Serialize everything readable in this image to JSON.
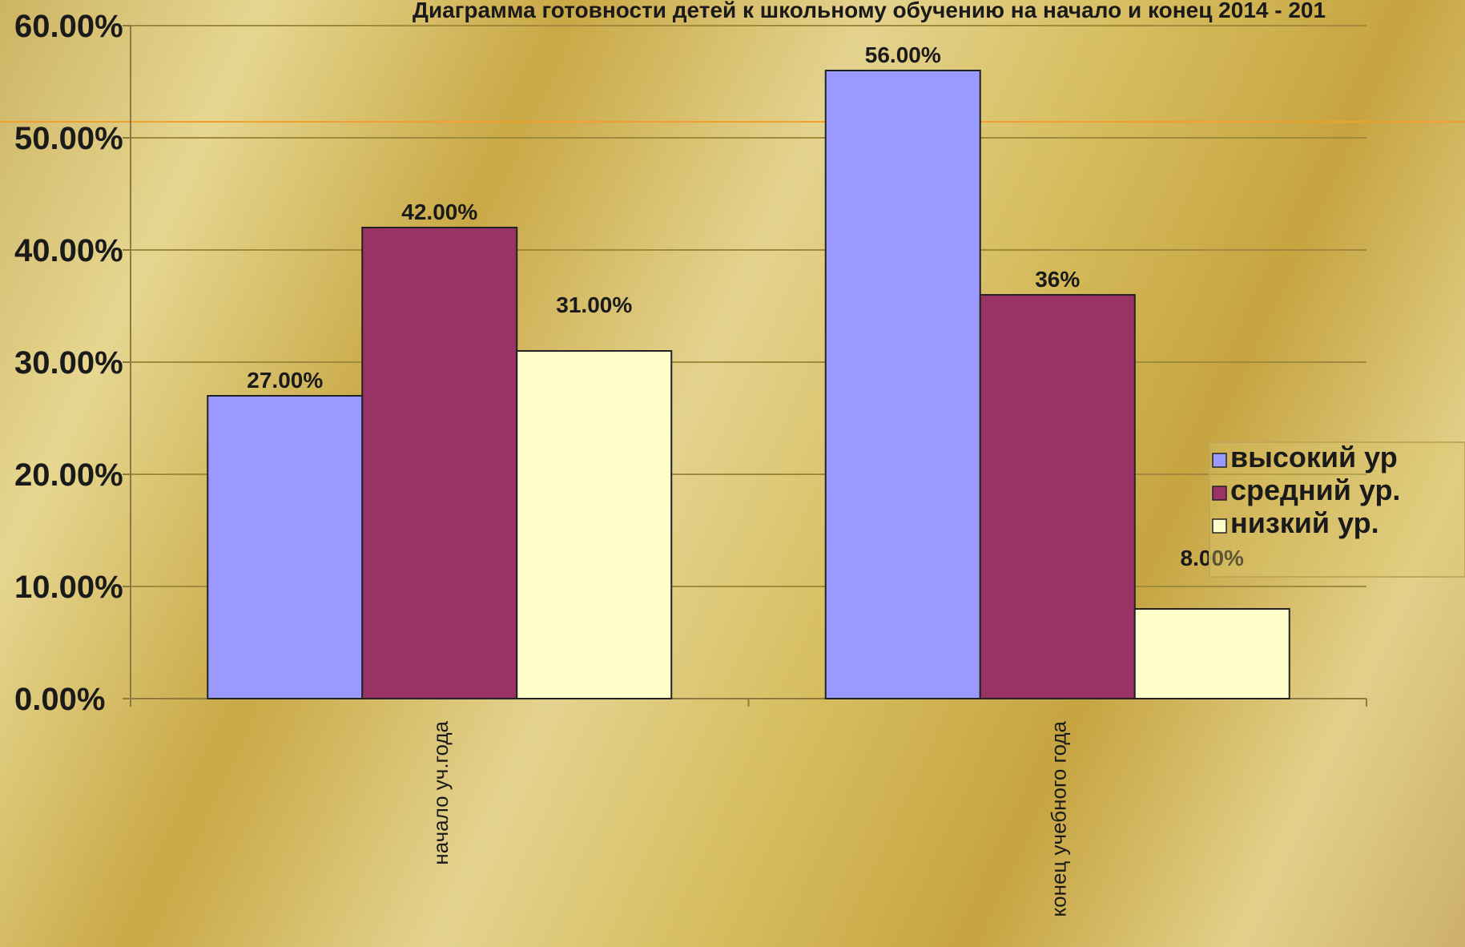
{
  "chart_data": {
    "type": "bar",
    "title": "Диаграмма готовности детей к школьному обучению на начало и конец 2014 - 201",
    "categories": [
      "начало уч.года",
      "конец учебного года"
    ],
    "series": [
      {
        "name": "высокий ур",
        "values": [
          27,
          56
        ],
        "labels": [
          "27.00%",
          "56.00%"
        ],
        "color": "#9999ff"
      },
      {
        "name": "средний ур.",
        "values": [
          42,
          36
        ],
        "labels": [
          "42.00%",
          "36%"
        ],
        "color": "#993366"
      },
      {
        "name": "низкий ур.",
        "values": [
          31,
          8
        ],
        "labels": [
          "31.00%",
          "8.00%"
        ],
        "color": "#ffffcc"
      }
    ],
    "yticks": [
      "0.00%",
      "10.00%",
      "20.00%",
      "30.00%",
      "40.00%",
      "50.00%",
      "60.00%"
    ],
    "ylim": [
      0,
      60
    ],
    "grid": true,
    "legend": "right",
    "colors": {
      "grid": "#a08a3c",
      "axis": "#8c7a40",
      "highlight_line": "#f0a030"
    }
  }
}
